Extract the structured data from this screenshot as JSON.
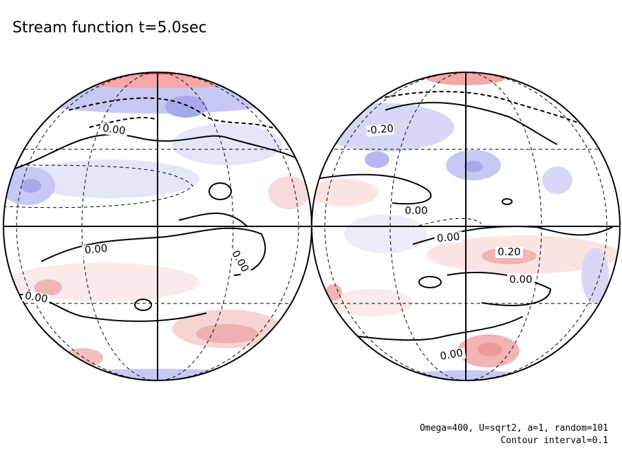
{
  "title": "Stream function t=5.0sec",
  "notes": [
    "Omega=400, U=sqrt2, a=1, random=101",
    "Contour interval=0.1"
  ],
  "contour_labels": [
    "0.00",
    "0.00",
    "0.00",
    "0.00",
    "-0.20",
    "0.00",
    "0.00",
    "0.20",
    "0.00",
    "0.00"
  ]
}
